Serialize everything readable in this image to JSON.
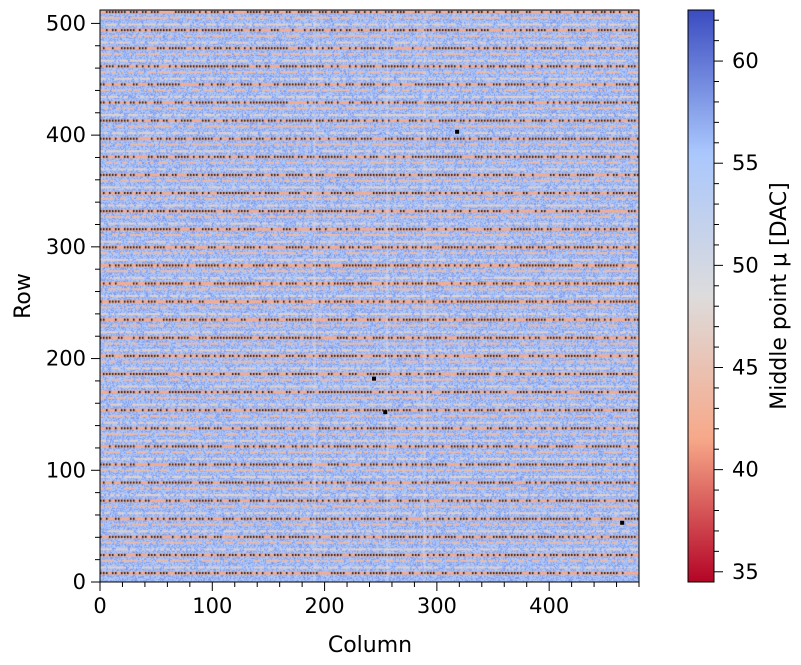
{
  "chart_data": {
    "type": "heatmap",
    "title": "",
    "xlabel": "Column",
    "ylabel": "Row",
    "xlim": [
      0,
      480
    ],
    "ylim": [
      0,
      512
    ],
    "xticks": [
      0,
      100,
      200,
      300,
      400
    ],
    "yticks": [
      0,
      100,
      200,
      300,
      400,
      500
    ],
    "colorbar": {
      "label": "Middle point μ [DAC]",
      "range": [
        34.5,
        62.5
      ],
      "ticks": [
        35,
        40,
        45,
        50,
        55,
        60
      ],
      "colormap": "coolwarm_r",
      "colors": [
        "#b40426",
        "#f7a889",
        "#dddcdc",
        "#aac7fd",
        "#3b4cc0"
      ]
    },
    "typical_value": 56,
    "band_period_rows": 16.2,
    "band_pattern": [
      {
        "row_offset": 0,
        "value": 42,
        "style": "dotted_dark"
      },
      {
        "row_offset": 5,
        "value": 47,
        "style": "light_salmon"
      },
      {
        "row_offset": 11,
        "value": 44,
        "style": "salmon"
      }
    ],
    "dead_pixels": [
      {
        "col": 318,
        "row": 403
      },
      {
        "col": 244,
        "row": 182
      },
      {
        "col": 254,
        "row": 152
      },
      {
        "col": 465,
        "row": 53
      }
    ]
  }
}
